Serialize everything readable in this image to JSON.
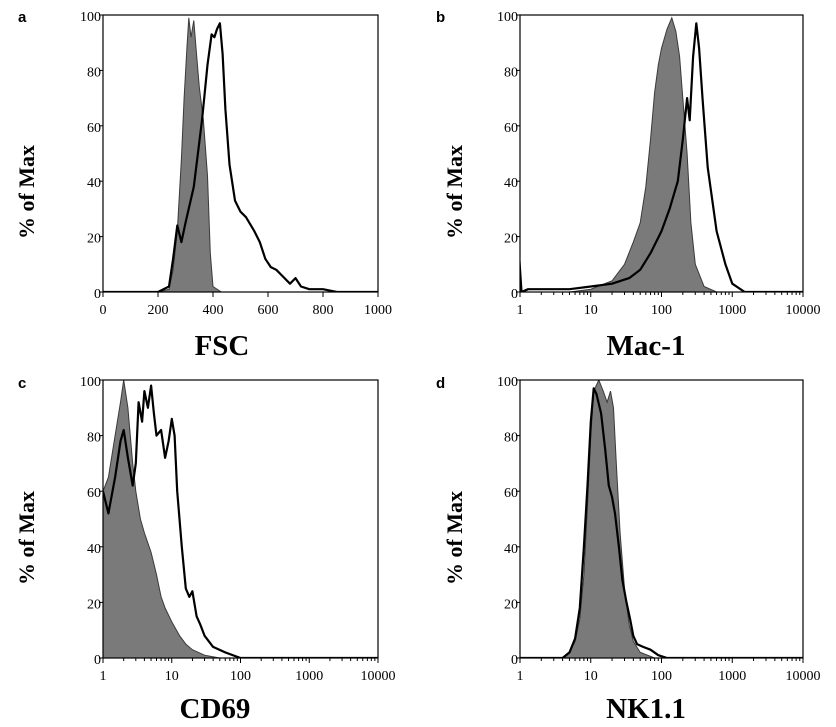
{
  "chart_data": [
    {
      "panel": "a",
      "type": "area",
      "xscale": "linear",
      "xlim": [
        0,
        1000
      ],
      "ylim": [
        0,
        100
      ],
      "xticks": [
        "0",
        "200",
        "400",
        "600",
        "800",
        "1000"
      ],
      "yticks": [
        "0",
        "20",
        "40",
        "60",
        "80",
        "100"
      ],
      "xlabel": "FSC",
      "ylabel": "% of Max",
      "series": [
        {
          "style": "filled",
          "points": [
            [
              0,
              0
            ],
            [
              200,
              0
            ],
            [
              240,
              1
            ],
            [
              255,
              8
            ],
            [
              270,
              22
            ],
            [
              285,
              48
            ],
            [
              295,
              70
            ],
            [
              305,
              88
            ],
            [
              312,
              99
            ],
            [
              320,
              92
            ],
            [
              330,
              98
            ],
            [
              340,
              86
            ],
            [
              350,
              74
            ],
            [
              365,
              62
            ],
            [
              380,
              42
            ],
            [
              390,
              14
            ],
            [
              400,
              2
            ],
            [
              430,
              0
            ],
            [
              1000,
              0
            ]
          ]
        },
        {
          "style": "outline",
          "points": [
            [
              0,
              0
            ],
            [
              200,
              0
            ],
            [
              240,
              2
            ],
            [
              255,
              12
            ],
            [
              270,
              24
            ],
            [
              285,
              18
            ],
            [
              300,
              25
            ],
            [
              330,
              38
            ],
            [
              360,
              62
            ],
            [
              380,
              82
            ],
            [
              395,
              93
            ],
            [
              405,
              92
            ],
            [
              415,
              95
            ],
            [
              425,
              97
            ],
            [
              435,
              86
            ],
            [
              445,
              66
            ],
            [
              460,
              46
            ],
            [
              480,
              33
            ],
            [
              500,
              29
            ],
            [
              520,
              27
            ],
            [
              550,
              22
            ],
            [
              570,
              18
            ],
            [
              590,
              12
            ],
            [
              610,
              9
            ],
            [
              630,
              8
            ],
            [
              650,
              6
            ],
            [
              680,
              3
            ],
            [
              700,
              5
            ],
            [
              720,
              2
            ],
            [
              750,
              1
            ],
            [
              800,
              1
            ],
            [
              850,
              0
            ],
            [
              1000,
              0
            ]
          ]
        }
      ]
    },
    {
      "panel": "b",
      "type": "area",
      "xscale": "log",
      "xlim": [
        1,
        10000
      ],
      "ylim": [
        0,
        100
      ],
      "xticks": [
        "1",
        "10",
        "100",
        "1000",
        "10000"
      ],
      "yticks": [
        "0",
        "20",
        "40",
        "60",
        "80",
        "100"
      ],
      "xlabel": "Mac-1",
      "ylabel": "% of Max",
      "series": [
        {
          "style": "filled",
          "points": [
            [
              1,
              0
            ],
            [
              5,
              0
            ],
            [
              10,
              1
            ],
            [
              20,
              4
            ],
            [
              30,
              10
            ],
            [
              40,
              18
            ],
            [
              50,
              25
            ],
            [
              60,
              38
            ],
            [
              70,
              55
            ],
            [
              80,
              72
            ],
            [
              90,
              82
            ],
            [
              100,
              88
            ],
            [
              120,
              95
            ],
            [
              140,
              99
            ],
            [
              160,
              94
            ],
            [
              180,
              85
            ],
            [
              200,
              70
            ],
            [
              230,
              50
            ],
            [
              260,
              25
            ],
            [
              300,
              10
            ],
            [
              400,
              2
            ],
            [
              600,
              0
            ],
            [
              10000,
              0
            ]
          ]
        },
        {
          "style": "outline",
          "points": [
            [
              0.95,
              17
            ],
            [
              1.05,
              0
            ],
            [
              1.3,
              1
            ],
            [
              2,
              1
            ],
            [
              5,
              1
            ],
            [
              10,
              2
            ],
            [
              20,
              3
            ],
            [
              35,
              5
            ],
            [
              50,
              8
            ],
            [
              70,
              14
            ],
            [
              100,
              22
            ],
            [
              130,
              30
            ],
            [
              170,
              40
            ],
            [
              200,
              55
            ],
            [
              230,
              70
            ],
            [
              250,
              62
            ],
            [
              280,
              85
            ],
            [
              310,
              97
            ],
            [
              340,
              88
            ],
            [
              380,
              70
            ],
            [
              450,
              45
            ],
            [
              600,
              22
            ],
            [
              800,
              10
            ],
            [
              1000,
              3
            ],
            [
              1500,
              0
            ],
            [
              10000,
              0
            ]
          ]
        }
      ]
    },
    {
      "panel": "c",
      "type": "area",
      "xscale": "log",
      "xlim": [
        1,
        10000
      ],
      "ylim": [
        0,
        100
      ],
      "xticks": [
        "1",
        "10",
        "100",
        "1000",
        "10000"
      ],
      "yticks": [
        "0",
        "20",
        "40",
        "60",
        "80",
        "100"
      ],
      "xlabel": "CD69",
      "ylabel": "% of Max",
      "series": [
        {
          "style": "filled",
          "points": [
            [
              1,
              60
            ],
            [
              1.2,
              65
            ],
            [
              1.5,
              80
            ],
            [
              1.8,
              92
            ],
            [
              2,
              100
            ],
            [
              2.3,
              90
            ],
            [
              2.7,
              70
            ],
            [
              3,
              60
            ],
            [
              3.5,
              50
            ],
            [
              4,
              45
            ],
            [
              5,
              38
            ],
            [
              6,
              30
            ],
            [
              7,
              22
            ],
            [
              8,
              18
            ],
            [
              10,
              13
            ],
            [
              13,
              8
            ],
            [
              16,
              5
            ],
            [
              20,
              3
            ],
            [
              30,
              1
            ],
            [
              50,
              0
            ],
            [
              10000,
              0
            ]
          ]
        },
        {
          "style": "outline",
          "points": [
            [
              1,
              60
            ],
            [
              1.2,
              52
            ],
            [
              1.5,
              65
            ],
            [
              1.8,
              78
            ],
            [
              2,
              82
            ],
            [
              2.3,
              72
            ],
            [
              2.7,
              62
            ],
            [
              3,
              70
            ],
            [
              3.3,
              92
            ],
            [
              3.7,
              85
            ],
            [
              4,
              96
            ],
            [
              4.5,
              90
            ],
            [
              5,
              98
            ],
            [
              5.5,
              88
            ],
            [
              6,
              80
            ],
            [
              7,
              82
            ],
            [
              8,
              72
            ],
            [
              9,
              78
            ],
            [
              10,
              86
            ],
            [
              11,
              80
            ],
            [
              12,
              60
            ],
            [
              14,
              40
            ],
            [
              16,
              25
            ],
            [
              18,
              22
            ],
            [
              20,
              24
            ],
            [
              23,
              15
            ],
            [
              26,
              12
            ],
            [
              30,
              8
            ],
            [
              40,
              4
            ],
            [
              60,
              2
            ],
            [
              100,
              0
            ],
            [
              10000,
              0
            ]
          ]
        }
      ]
    },
    {
      "panel": "d",
      "type": "area",
      "xscale": "log",
      "xlim": [
        1,
        10000
      ],
      "ylim": [
        0,
        100
      ],
      "xticks": [
        "1",
        "10",
        "100",
        "1000",
        "10000"
      ],
      "yticks": [
        "0",
        "20",
        "40",
        "60",
        "80",
        "100"
      ],
      "xlabel": "NK1.1",
      "ylabel": "% of Max",
      "series": [
        {
          "style": "filled",
          "points": [
            [
              1,
              0
            ],
            [
              4,
              0
            ],
            [
              5,
              2
            ],
            [
              6,
              6
            ],
            [
              7,
              14
            ],
            [
              8,
              30
            ],
            [
              9,
              55
            ],
            [
              10,
              80
            ],
            [
              11,
              96
            ],
            [
              13,
              100
            ],
            [
              15,
              96
            ],
            [
              17,
              92
            ],
            [
              19,
              96
            ],
            [
              21,
              90
            ],
            [
              23,
              70
            ],
            [
              26,
              45
            ],
            [
              30,
              25
            ],
            [
              35,
              12
            ],
            [
              40,
              6
            ],
            [
              50,
              2
            ],
            [
              80,
              0
            ],
            [
              10000,
              0
            ]
          ]
        },
        {
          "style": "outline",
          "points": [
            [
              1,
              0
            ],
            [
              4,
              0
            ],
            [
              5,
              2
            ],
            [
              6,
              7
            ],
            [
              7,
              18
            ],
            [
              8,
              40
            ],
            [
              9,
              62
            ],
            [
              10,
              85
            ],
            [
              11,
              97
            ],
            [
              12,
              95
            ],
            [
              14,
              88
            ],
            [
              16,
              75
            ],
            [
              18,
              62
            ],
            [
              20,
              58
            ],
            [
              22,
              52
            ],
            [
              25,
              40
            ],
            [
              28,
              28
            ],
            [
              32,
              20
            ],
            [
              36,
              14
            ],
            [
              40,
              8
            ],
            [
              45,
              5
            ],
            [
              55,
              4
            ],
            [
              70,
              3
            ],
            [
              90,
              1
            ],
            [
              120,
              0
            ],
            [
              10000,
              0
            ]
          ]
        }
      ]
    }
  ]
}
